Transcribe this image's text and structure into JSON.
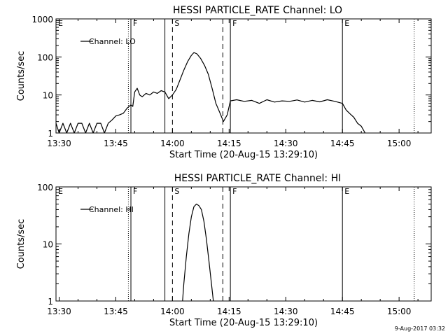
{
  "chart_data": [
    {
      "type": "line",
      "title": "HESSI PARTICLE_RATE Channel: LO",
      "xlabel": "Start Time (20-Aug-15 13:29:10)",
      "ylabel": "Counts/sec",
      "y_scale": "log",
      "ylim": [
        1,
        1000
      ],
      "xlim": [
        "13:29:10",
        "15:08:30"
      ],
      "x_ticks": [
        "13:30",
        "13:45",
        "14:00",
        "14:15",
        "14:30",
        "14:45",
        "15:00"
      ],
      "y_ticks": [
        "1",
        "10",
        "100",
        "1000"
      ],
      "legend": {
        "position": "top-left",
        "entries": [
          "Channel: LO"
        ]
      },
      "markers": [
        {
          "label": "E",
          "time": "13:29:10",
          "style": "solid"
        },
        {
          "label": "F",
          "time": "13:49:00",
          "style": "solid"
        },
        {
          "label": "",
          "time": "13:48:20",
          "style": "dotted"
        },
        {
          "label": "",
          "time": "13:58:00",
          "style": "solid"
        },
        {
          "label": "S",
          "time": "14:00:00",
          "style": "dashed"
        },
        {
          "label": "",
          "time": "14:13:20",
          "style": "dashed"
        },
        {
          "label": "F",
          "time": "14:15:20",
          "style": "solid"
        },
        {
          "label": "E",
          "time": "14:45:00",
          "style": "solid"
        },
        {
          "label": "",
          "time": "15:04:00",
          "style": "dotted"
        }
      ],
      "series": [
        {
          "name": "Channel: LO",
          "points": [
            [
              "13:29:10",
              1.8
            ],
            [
              "13:30:00",
              1
            ],
            [
              "13:31:00",
              1.8
            ],
            [
              "13:32:00",
              1
            ],
            [
              "13:33:00",
              1.8
            ],
            [
              "13:34:00",
              1
            ],
            [
              "13:35:00",
              1.8
            ],
            [
              "13:36:00",
              1.8
            ],
            [
              "13:37:00",
              1
            ],
            [
              "13:38:00",
              1.8
            ],
            [
              "13:39:00",
              1
            ],
            [
              "13:40:00",
              1.8
            ],
            [
              "13:41:00",
              1.8
            ],
            [
              "13:42:00",
              1
            ],
            [
              "13:43:00",
              1.8
            ],
            [
              "13:44:00",
              2.2
            ],
            [
              "13:45:00",
              2.8
            ],
            [
              "13:46:00",
              3
            ],
            [
              "13:47:00",
              3.3
            ],
            [
              "13:48:00",
              4.5
            ],
            [
              "13:49:00",
              5.5
            ],
            [
              "13:49:30",
              5
            ],
            [
              "13:50:00",
              12
            ],
            [
              "13:50:40",
              15
            ],
            [
              "13:51:20",
              10
            ],
            [
              "13:52:00",
              9
            ],
            [
              "13:53:00",
              11
            ],
            [
              "13:54:00",
              10
            ],
            [
              "13:55:00",
              12
            ],
            [
              "13:56:00",
              11
            ],
            [
              "13:57:00",
              13
            ],
            [
              "13:58:00",
              12
            ],
            [
              "13:59:00",
              8
            ],
            [
              "14:00:00",
              10
            ],
            [
              "14:01:00",
              14
            ],
            [
              "14:02:00",
              25
            ],
            [
              "14:03:00",
              45
            ],
            [
              "14:04:00",
              75
            ],
            [
              "14:05:00",
              110
            ],
            [
              "14:05:40",
              130
            ],
            [
              "14:06:30",
              120
            ],
            [
              "14:07:30",
              90
            ],
            [
              "14:08:30",
              60
            ],
            [
              "14:09:30",
              35
            ],
            [
              "14:10:30",
              15
            ],
            [
              "14:11:30",
              6
            ],
            [
              "14:12:30",
              3.5
            ],
            [
              "14:13:30",
              2
            ],
            [
              "14:14:30",
              3
            ],
            [
              "14:15:20",
              7
            ],
            [
              "14:17:00",
              7.5
            ],
            [
              "14:19:00",
              6.8
            ],
            [
              "14:21:00",
              7.2
            ],
            [
              "14:23:00",
              6
            ],
            [
              "14:25:00",
              7.5
            ],
            [
              "14:27:00",
              6.5
            ],
            [
              "14:29:00",
              7
            ],
            [
              "14:31:00",
              6.8
            ],
            [
              "14:33:00",
              7.4
            ],
            [
              "14:35:00",
              6.5
            ],
            [
              "14:37:00",
              7.2
            ],
            [
              "14:39:00",
              6.6
            ],
            [
              "14:41:00",
              7.5
            ],
            [
              "14:43:00",
              6.8
            ],
            [
              "14:45:00",
              6
            ],
            [
              "14:46:00",
              4
            ],
            [
              "14:47:00",
              3.2
            ],
            [
              "14:48:00",
              2.6
            ],
            [
              "14:49:00",
              1.8
            ],
            [
              "14:50:00",
              1.5
            ],
            [
              "14:51:00",
              1
            ]
          ]
        }
      ]
    },
    {
      "type": "line",
      "title": "HESSI PARTICLE_RATE Channel: HI",
      "xlabel": "Start Time (20-Aug-15 13:29:10)",
      "ylabel": "Counts/sec",
      "y_scale": "log",
      "ylim": [
        1,
        100
      ],
      "xlim": [
        "13:29:10",
        "15:08:30"
      ],
      "x_ticks": [
        "13:30",
        "13:45",
        "14:00",
        "14:15",
        "14:30",
        "14:45",
        "15:00"
      ],
      "y_ticks": [
        "1",
        "10",
        "100"
      ],
      "legend": {
        "position": "top-left",
        "entries": [
          "Channel: HI"
        ]
      },
      "markers": [
        {
          "label": "E",
          "time": "13:29:10",
          "style": "solid"
        },
        {
          "label": "F",
          "time": "13:49:00",
          "style": "solid"
        },
        {
          "label": "",
          "time": "13:48:20",
          "style": "dotted"
        },
        {
          "label": "",
          "time": "13:58:00",
          "style": "solid"
        },
        {
          "label": "S",
          "time": "14:00:00",
          "style": "dashed"
        },
        {
          "label": "",
          "time": "14:13:20",
          "style": "dashed"
        },
        {
          "label": "F",
          "time": "14:15:20",
          "style": "solid"
        },
        {
          "label": "E",
          "time": "14:45:00",
          "style": "solid"
        },
        {
          "label": "",
          "time": "15:04:00",
          "style": "dotted"
        }
      ],
      "series": [
        {
          "name": "Channel: HI",
          "points": [
            [
              "14:02:40",
              1
            ],
            [
              "14:03:00",
              2
            ],
            [
              "14:03:40",
              6
            ],
            [
              "14:04:20",
              15
            ],
            [
              "14:05:00",
              30
            ],
            [
              "14:05:40",
              45
            ],
            [
              "14:06:20",
              50
            ],
            [
              "14:07:00",
              47
            ],
            [
              "14:07:40",
              40
            ],
            [
              "14:08:20",
              25
            ],
            [
              "14:09:00",
              12
            ],
            [
              "14:09:40",
              5
            ],
            [
              "14:10:20",
              2
            ],
            [
              "14:10:50",
              1
            ]
          ]
        }
      ]
    }
  ],
  "footer": {
    "date_stamp": "9-Aug-2017 03:32"
  }
}
